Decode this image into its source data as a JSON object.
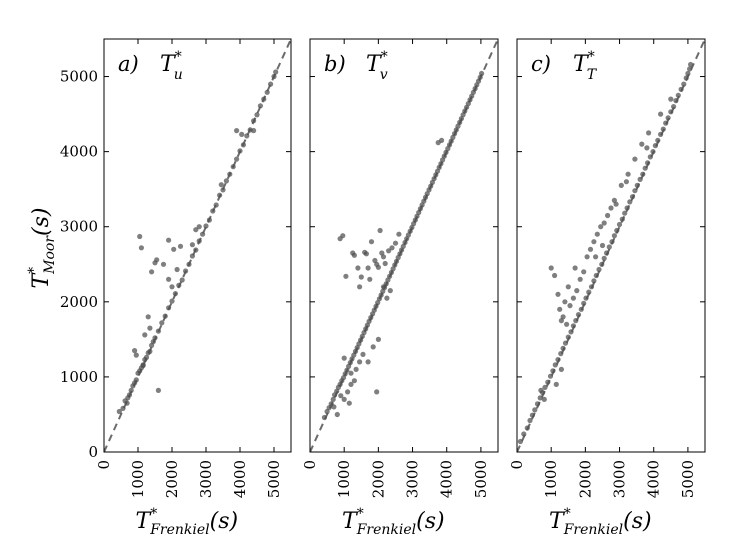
{
  "chart_data": [
    {
      "type": "scatter",
      "panel_label": "a)",
      "variable": "T",
      "variable_sup": "*",
      "variable_sub": "u",
      "xlabel": "T*Frenkiel(s)",
      "ylabel": "T*Moor(s)",
      "xlim": [
        0,
        5500
      ],
      "ylim": [
        0,
        5500
      ],
      "xticks": [
        0,
        1000,
        2000,
        3000,
        4000,
        5000
      ],
      "yticks": [
        0,
        1000,
        2000,
        3000,
        4000,
        5000
      ],
      "reference_line": "y = x (dashed)",
      "x": [
        450,
        560,
        620,
        680,
        700,
        750,
        800,
        850,
        900,
        950,
        1000,
        1050,
        1100,
        1150,
        1200,
        1250,
        1300,
        1350,
        1400,
        1450,
        1500,
        1600,
        1700,
        1800,
        1900,
        2000,
        2100,
        2200,
        2300,
        2400,
        2500,
        2600,
        2700,
        2800,
        2900,
        3000,
        3100,
        3200,
        3300,
        3400,
        3500,
        3600,
        3700,
        3800,
        3900,
        4000,
        4100,
        4200,
        4300,
        4400,
        4500,
        4600,
        4700,
        4800,
        4900,
        5000,
        5050,
        1050,
        1100,
        1550,
        1500,
        1400,
        1750,
        1900,
        2050,
        2150,
        1900,
        1200,
        950,
        1600,
        3900,
        4050,
        4400,
        3450,
        2250,
        2700,
        1300,
        1350,
        900,
        1150,
        2600,
        2000,
        2800
      ],
      "y": [
        540,
        580,
        680,
        650,
        720,
        760,
        820,
        880,
        920,
        960,
        1050,
        1080,
        1120,
        1160,
        1230,
        1260,
        1320,
        1340,
        1420,
        1470,
        1520,
        1610,
        1720,
        1810,
        1920,
        2010,
        2110,
        2220,
        2290,
        2410,
        2500,
        2610,
        2690,
        2810,
        2900,
        3010,
        3090,
        3210,
        3290,
        3420,
        3490,
        3610,
        3700,
        3800,
        3900,
        4010,
        4090,
        4210,
        4290,
        4410,
        4490,
        4610,
        4700,
        4790,
        4900,
        5000,
        5060,
        2870,
        2720,
        2560,
        2520,
        2400,
        2500,
        2820,
        2700,
        2430,
        2300,
        1560,
        1290,
        820,
        4280,
        4230,
        4280,
        3560,
        2740,
        2960,
        1800,
        1650,
        1350,
        1150,
        2760,
        2200,
        3000
      ]
    },
    {
      "type": "scatter",
      "panel_label": "b)",
      "variable": "T",
      "variable_sup": "*",
      "variable_sub": "v",
      "xlabel": "T*Frenkiel(s)",
      "ylabel": "",
      "xlim": [
        0,
        5500
      ],
      "ylim": [
        0,
        5500
      ],
      "xticks": [
        0,
        1000,
        2000,
        3000,
        4000,
        5000
      ],
      "yticks": [
        0,
        1000,
        2000,
        3000,
        4000,
        5000
      ],
      "reference_line": "y = x (dashed)",
      "x": [
        420,
        500,
        560,
        620,
        680,
        720,
        780,
        830,
        880,
        930,
        980,
        1030,
        1080,
        1130,
        1180,
        1230,
        1280,
        1330,
        1380,
        1430,
        1480,
        1530,
        1580,
        1630,
        1680,
        1730,
        1780,
        1830,
        1880,
        1930,
        1980,
        2030,
        2080,
        2130,
        2180,
        2230,
        2280,
        2330,
        2380,
        2430,
        2480,
        2530,
        2580,
        2630,
        2680,
        2730,
        2780,
        2830,
        2880,
        2930,
        2980,
        3030,
        3080,
        3130,
        3180,
        3230,
        3280,
        3330,
        3380,
        3430,
        3480,
        3530,
        3580,
        3630,
        3680,
        3730,
        3780,
        3830,
        3880,
        3930,
        3980,
        4030,
        4080,
        4130,
        4180,
        4230,
        4280,
        4330,
        4380,
        4430,
        4480,
        4530,
        4580,
        4630,
        4680,
        4730,
        4780,
        4830,
        4880,
        4930,
        4980,
        5020,
        880,
        960,
        1050,
        1250,
        1300,
        1400,
        1450,
        1500,
        1600,
        1650,
        1700,
        1750,
        1800,
        1900,
        1950,
        2000,
        2050,
        2100,
        2150,
        2200,
        2300,
        2400,
        2500,
        2600,
        1100,
        1200,
        1300,
        1350,
        1450,
        1550,
        900,
        1000,
        1150,
        1700,
        1850,
        2000,
        2250,
        2350,
        2150,
        3750,
        3850,
        1950,
        1000,
        1200,
        700,
        800
      ],
      "y": [
        460,
        540,
        590,
        640,
        700,
        760,
        810,
        860,
        900,
        950,
        990,
        1040,
        1090,
        1140,
        1190,
        1240,
        1290,
        1340,
        1390,
        1440,
        1490,
        1540,
        1590,
        1640,
        1690,
        1740,
        1790,
        1840,
        1890,
        1940,
        1990,
        2040,
        2090,
        2140,
        2190,
        2240,
        2290,
        2340,
        2390,
        2440,
        2490,
        2540,
        2590,
        2640,
        2690,
        2740,
        2790,
        2840,
        2890,
        2940,
        2990,
        3040,
        3090,
        3140,
        3190,
        3240,
        3290,
        3340,
        3390,
        3440,
        3490,
        3540,
        3590,
        3640,
        3690,
        3740,
        3790,
        3840,
        3890,
        3940,
        3990,
        4040,
        4090,
        4140,
        4190,
        4240,
        4290,
        4340,
        4390,
        4440,
        4490,
        4540,
        4590,
        4640,
        4690,
        4740,
        4790,
        4840,
        4890,
        4940,
        4990,
        5040,
        2840,
        2880,
        2340,
        2650,
        2620,
        2450,
        2200,
        2330,
        2660,
        2640,
        2450,
        2300,
        2800,
        2550,
        2500,
        2460,
        2950,
        2650,
        2600,
        2510,
        2680,
        2720,
        2780,
        2900,
        800,
        900,
        950,
        1100,
        1200,
        1300,
        750,
        700,
        650,
        1200,
        1400,
        1500,
        2050,
        2150,
        2200,
        4120,
        4150,
        800,
        1250,
        1050,
        600,
        500
      ]
    },
    {
      "type": "scatter",
      "panel_label": "c)",
      "variable": "T",
      "variable_sup": "*",
      "variable_sub": "T",
      "xlabel": "T*Frenkiel(s)",
      "ylabel": "",
      "xlim": [
        0,
        5500
      ],
      "ylim": [
        0,
        5500
      ],
      "xticks": [
        0,
        1000,
        2000,
        3000,
        4000,
        5000
      ],
      "yticks": [
        0,
        1000,
        2000,
        3000,
        4000,
        5000
      ],
      "reference_line": "y = x (dashed)",
      "x": [
        100,
        200,
        300,
        380,
        450,
        520,
        600,
        680,
        750,
        820,
        900,
        980,
        1050,
        1120,
        1200,
        1280,
        1350,
        1420,
        1500,
        1580,
        1650,
        1720,
        1800,
        1880,
        1950,
        2020,
        2100,
        2180,
        2250,
        2320,
        2400,
        2480,
        2550,
        2620,
        2700,
        2780,
        2850,
        2920,
        3000,
        3080,
        3150,
        3220,
        3300,
        3380,
        3450,
        3520,
        3600,
        3680,
        3750,
        3820,
        3900,
        3980,
        4050,
        4120,
        4200,
        4280,
        4350,
        4420,
        4500,
        4580,
        4650,
        4720,
        4800,
        4880,
        4950,
        5000,
        5050,
        5080,
        1000,
        1100,
        1200,
        1250,
        1350,
        1450,
        1550,
        1650,
        1750,
        1850,
        1950,
        2050,
        2150,
        2250,
        2350,
        2450,
        2550,
        2650,
        2750,
        2850,
        3050,
        3250,
        3450,
        3650,
        3850,
        1700,
        1400,
        1500,
        1300,
        3800,
        4200,
        4500,
        3200,
        2900,
        700,
        800,
        1150,
        1300,
        2300,
        2500
      ],
      "y": [
        140,
        240,
        320,
        420,
        490,
        560,
        640,
        720,
        790,
        860,
        930,
        1010,
        1080,
        1160,
        1230,
        1310,
        1380,
        1450,
        1530,
        1600,
        1680,
        1750,
        1830,
        1900,
        1980,
        2050,
        2130,
        2200,
        2280,
        2350,
        2430,
        2500,
        2580,
        2650,
        2730,
        2800,
        2880,
        2950,
        3030,
        3100,
        3180,
        3250,
        3330,
        3400,
        3480,
        3550,
        3630,
        3700,
        3780,
        3850,
        3930,
        4000,
        4080,
        4150,
        4230,
        4300,
        4380,
        4450,
        4530,
        4600,
        4680,
        4750,
        4830,
        4900,
        4980,
        5040,
        5100,
        5160,
        2450,
        2350,
        2100,
        1900,
        1800,
        1700,
        1950,
        2050,
        2150,
        2300,
        2400,
        2600,
        2700,
        2800,
        2900,
        3000,
        3050,
        3150,
        3250,
        3350,
        3550,
        3700,
        3900,
        4100,
        4250,
        2450,
        2000,
        2200,
        1750,
        4050,
        4500,
        4700,
        3600,
        3300,
        820,
        700,
        900,
        1100,
        2600,
        2750
      ]
    }
  ]
}
